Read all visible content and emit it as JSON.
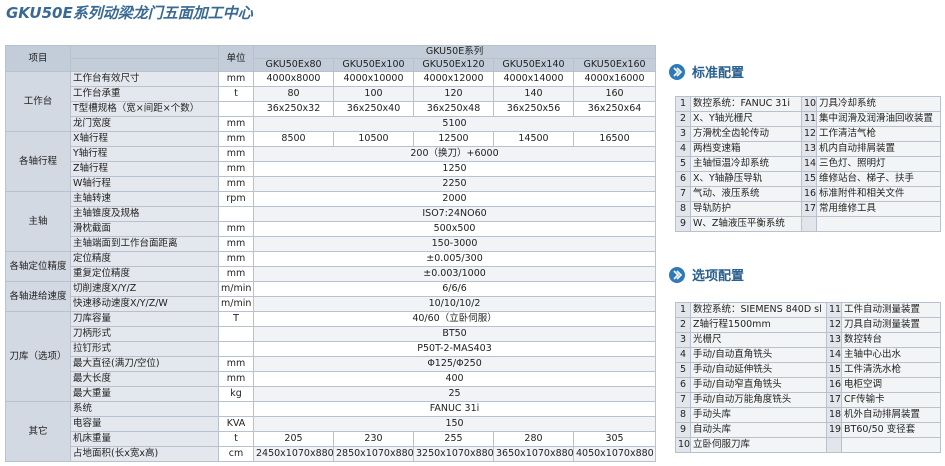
{
  "header": {
    "title": "GKU50E系列动梁龙门五面加工中心"
  },
  "table": {
    "head": {
      "item": "项目",
      "unit": "单位",
      "series": "GKU50E系列",
      "models": [
        "GKU50Ex80",
        "GKU50Ex100",
        "GKU50Ex120",
        "GKU50Ex140",
        "GKU50Ex160"
      ]
    },
    "groups": [
      {
        "name": "工作台",
        "rows": [
          {
            "item": "工作台有效尺寸",
            "unit": "mm",
            "values": [
              "4000x8000",
              "4000x10000",
              "4000x12000",
              "4000x14000",
              "4000x16000"
            ]
          },
          {
            "item": "工作台承重",
            "unit": "t",
            "values": [
              "80",
              "100",
              "120",
              "140",
              "160"
            ]
          },
          {
            "item": "T型槽规格（宽×间距×个数）",
            "values": [
              "36x250x32",
              "36x250x40",
              "36x250x48",
              "36x250x56",
              "36x250x64"
            ]
          },
          {
            "item": "龙门宽度",
            "unit": "mm",
            "values": [
              "5100"
            ]
          }
        ]
      },
      {
        "name": "各轴行程",
        "rows": [
          {
            "item": "X轴行程",
            "unit": "mm",
            "values": [
              "8500",
              "10500",
              "12500",
              "14500",
              "16500"
            ]
          },
          {
            "item": "Y轴行程",
            "unit": "mm",
            "values": [
              "200（换刀）+6000"
            ]
          },
          {
            "item": "Z轴行程",
            "unit": "mm",
            "values": [
              "1250"
            ]
          },
          {
            "item": "W轴行程",
            "unit": "mm",
            "values": [
              "2250"
            ]
          }
        ]
      },
      {
        "name": "主轴",
        "rows": [
          {
            "item": "主轴转速",
            "unit": "rpm",
            "values": [
              "2000"
            ]
          },
          {
            "item": "主轴锥度及规格",
            "values": [
              "ISO7:24NO60"
            ]
          },
          {
            "item": "滑枕截面",
            "unit": "mm",
            "values": [
              "500x500"
            ]
          },
          {
            "item": "主轴端面到工作台面距离",
            "unit": "mm",
            "values": [
              "150-3000"
            ]
          }
        ]
      },
      {
        "name": "各轴定位精度",
        "rows": [
          {
            "item": "定位精度",
            "unit": "mm",
            "values": [
              "±0.005/300"
            ]
          },
          {
            "item": "重复定位精度",
            "unit": "mm",
            "values": [
              "±0.003/1000"
            ]
          }
        ]
      },
      {
        "name": "各轴进给速度",
        "rows": [
          {
            "item": "切削速度X/Y/Z",
            "unit": "m/min",
            "values": [
              "6/6/6"
            ]
          },
          {
            "item": "快速移动速度X/Y/Z/W",
            "unit": "m/min",
            "values": [
              "10/10/10/2"
            ]
          }
        ]
      },
      {
        "name": "刀库（选项）",
        "rows": [
          {
            "item": "刀库容量",
            "unit": "T",
            "values": [
              "40/60（立卧伺服）"
            ]
          },
          {
            "item": "刀柄形式",
            "values": [
              "BT50"
            ]
          },
          {
            "item": "拉钉形式",
            "values": [
              "P50T-2-MAS403"
            ]
          },
          {
            "item": "最大直径(满刀/空位)",
            "unit": "mm",
            "values": [
              "Φ125/Φ250"
            ]
          },
          {
            "item": "最大长度",
            "unit": "mm",
            "values": [
              "400"
            ]
          },
          {
            "item": "最大重量",
            "unit": "kg",
            "values": [
              "25"
            ]
          }
        ]
      },
      {
        "name": "其它",
        "rows": [
          {
            "item": "系统",
            "values": [
              "FANUC 31i"
            ]
          },
          {
            "item": "电容量",
            "unit": "KVA",
            "values": [
              "150"
            ]
          },
          {
            "item": "机床重量",
            "unit": "t",
            "values": [
              "205",
              "230",
              "255",
              "280",
              "305"
            ]
          },
          {
            "item": "占地面积(长x宽x高)",
            "unit": "cm",
            "values": [
              "2450x1070x880",
              "2850x1070x880",
              "3250x1070x880",
              "3650x1070x880",
              "4050x1070x880"
            ]
          }
        ]
      }
    ]
  },
  "standard": {
    "title": "标准配置",
    "left": [
      {
        "no": 1,
        "text": "数控系统：FANUC 31i"
      },
      {
        "no": 2,
        "text": "X、Y轴光栅尺"
      },
      {
        "no": 3,
        "text": "方滑枕全齿轮传动"
      },
      {
        "no": 4,
        "text": "两档变速箱"
      },
      {
        "no": 5,
        "text": "主轴恒温冷却系统"
      },
      {
        "no": 6,
        "text": "X、Y轴静压导轨"
      },
      {
        "no": 7,
        "text": "气动、液压系统"
      },
      {
        "no": 8,
        "text": "导轨防护"
      },
      {
        "no": 9,
        "text": "W、Z轴液压平衡系统"
      }
    ],
    "right": [
      {
        "no": 10,
        "text": "刀具冷却系统"
      },
      {
        "no": 11,
        "text": "集中润滑及润滑油回收装置"
      },
      {
        "no": 12,
        "text": "工作清洁气枪"
      },
      {
        "no": 13,
        "text": "机内自动排屑装置"
      },
      {
        "no": 14,
        "text": "三色灯、照明灯"
      },
      {
        "no": 15,
        "text": "维修站台、梯子、扶手"
      },
      {
        "no": 16,
        "text": "标准附件和相关文件"
      },
      {
        "no": 17,
        "text": "常用维修工具"
      }
    ]
  },
  "options": {
    "title": "选项配置",
    "left": [
      {
        "no": 1,
        "text": "数控系统：SIEMENS 840D sl"
      },
      {
        "no": 2,
        "text": "Z轴行程1500mm"
      },
      {
        "no": 3,
        "text": "光栅尺"
      },
      {
        "no": 4,
        "text": "手动/自动直角铣头"
      },
      {
        "no": 5,
        "text": "手动/自动延伸铣头"
      },
      {
        "no": 6,
        "text": "手动/自动窄直角铣头"
      },
      {
        "no": 7,
        "text": "手动/自动万能角度铣头"
      },
      {
        "no": 8,
        "text": "手动头库"
      },
      {
        "no": 9,
        "text": "自动头库"
      },
      {
        "no": 10,
        "text": "立卧伺服刀库"
      }
    ],
    "right": [
      {
        "no": 11,
        "text": "工件自动测量装置"
      },
      {
        "no": 12,
        "text": "刀具自动测量装置"
      },
      {
        "no": 13,
        "text": "数控转台"
      },
      {
        "no": 14,
        "text": "主轴中心出水"
      },
      {
        "no": 15,
        "text": "工件清洗水枪"
      },
      {
        "no": 16,
        "text": "电柜空调"
      },
      {
        "no": 17,
        "text": "CF传输卡"
      },
      {
        "no": 18,
        "text": "机外自动排屑装置"
      },
      {
        "no": 19,
        "text": "BT60/50 变径套"
      }
    ]
  }
}
